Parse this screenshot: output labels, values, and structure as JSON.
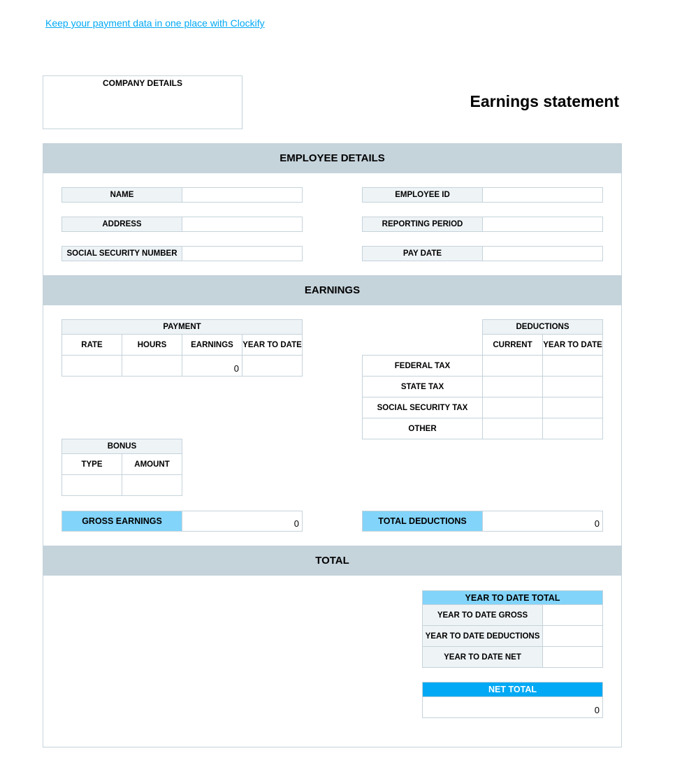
{
  "link": "Keep your payment data in one place with Clockify",
  "company": {
    "title": "COMPANY DETAILS"
  },
  "title": "Earnings statement",
  "employee": {
    "heading": "EMPLOYEE DETAILS",
    "fields": [
      "NAME",
      "ADDRESS",
      "SOCIAL SECURITY NUMBER",
      "EMPLOYEE ID",
      "REPORTING PERIOD",
      "PAY DATE"
    ]
  },
  "earnings": {
    "heading": "EARNINGS",
    "payment": {
      "title": "PAYMENT",
      "columns": [
        "RATE",
        "HOURS",
        "EARNINGS",
        "YEAR TO DATE"
      ],
      "row": [
        "",
        "",
        "0",
        ""
      ]
    },
    "deductions": {
      "title": "DEDUCTIONS",
      "columns": [
        "CURRENT",
        "YEAR TO DATE"
      ],
      "rows": [
        "FEDERAL TAX",
        "STATE TAX",
        "SOCIAL SECURITY TAX",
        "OTHER"
      ]
    },
    "bonus": {
      "title": "BONUS",
      "columns": [
        "TYPE",
        "AMOUNT"
      ]
    },
    "gross_label": "GROSS EARNINGS",
    "gross_value": "0",
    "total_deductions_label": "TOTAL DEDUCTIONS",
    "total_deductions_value": "0"
  },
  "total": {
    "heading": "TOTAL",
    "ytd_title": "YEAR TO DATE TOTAL",
    "ytd_rows": [
      "YEAR TO DATE GROSS",
      "YEAR TO DATE DEDUCTIONS",
      "YEAR TO DATE NET"
    ],
    "net_label": "NET TOTAL",
    "net_value": "0"
  },
  "colors": {
    "band": "#c5d3db",
    "label_bg": "#eef3f6",
    "highlight": "#82d4fa",
    "accent": "#03a9f4"
  }
}
